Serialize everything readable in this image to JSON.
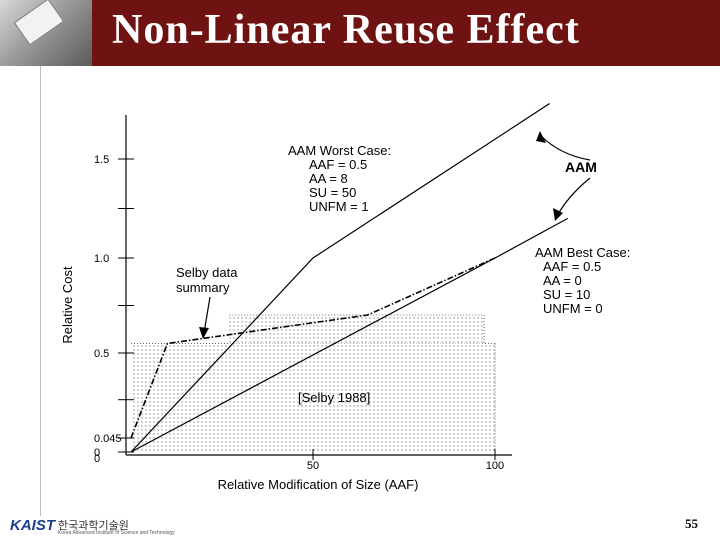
{
  "slide": {
    "title": "Non-Linear Reuse Effect",
    "page_number": "55",
    "footer_logo": "KAIST",
    "footer_org": "한국과학기술원",
    "footer_org_en": "Korea Advanced Institute of Science and Technology"
  },
  "chart_data": {
    "type": "line",
    "xlabel": "Relative Modification of Size (AAF)",
    "ylabel": "Relative Cost",
    "xlim": [
      0,
      120
    ],
    "ylim": [
      0,
      1.6
    ],
    "x_ticks": [
      {
        "value": 50,
        "label": "50"
      },
      {
        "value": 100,
        "label": "100"
      }
    ],
    "y_ticks": [
      {
        "value": 0,
        "label": "0"
      },
      {
        "value": 0.045,
        "label": "0.045"
      },
      {
        "value": 0.5,
        "label": "0.5"
      },
      {
        "value": 1.0,
        "label": "1.0"
      },
      {
        "value": 1.5,
        "label": "1.5"
      }
    ],
    "x_zero_label": "0",
    "minor_y_ticks": [
      0.25,
      0.75,
      1.25
    ],
    "series": [
      {
        "x": [
          0,
          50,
          115
        ],
        "y": [
          0,
          1.0,
          1.78
        ],
        "style": "solid"
      },
      {
        "x": [
          0,
          100,
          120
        ],
        "y": [
          0,
          1.0,
          1.2
        ],
        "style": "solid"
      },
      {
        "x": [
          0,
          10,
          65,
          100
        ],
        "y": [
          0.045,
          0.55,
          0.7,
          1.0
        ],
        "style": "dashdot"
      }
    ],
    "shaded_regions": [
      {
        "x": [
          0,
          100
        ],
        "y": [
          0,
          0.55
        ]
      },
      {
        "x": [
          27,
          97
        ],
        "y": [
          0.55,
          0.7
        ]
      }
    ],
    "annotations": {
      "worst_case": {
        "heading": "AAM Worst Case:",
        "lines": [
          "AAF = 0.5",
          "AA = 8",
          "SU = 50",
          "UNFM = 1"
        ]
      },
      "best_case": {
        "heading": "AAM Best Case:",
        "lines": [
          "AAF = 0.5",
          "AA = 0",
          "SU = 10",
          "UNFM = 0"
        ]
      },
      "aam_label": "AAM",
      "selby_label": [
        "Selby data",
        "summary"
      ],
      "selby_ref": "[Selby 1988]"
    }
  }
}
